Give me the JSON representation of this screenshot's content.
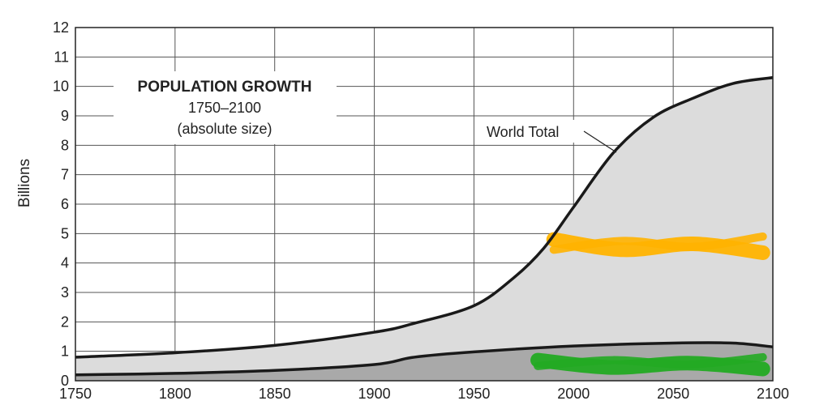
{
  "chart_data": {
    "type": "area",
    "title": "POPULATION GROWTH",
    "subtitle_line1": "1750–2100",
    "subtitle_line2": "(absolute size)",
    "ylabel": "Billions",
    "xlabel": "",
    "xlim": [
      1750,
      2100
    ],
    "ylim": [
      0,
      12
    ],
    "x_ticks": [
      1750,
      1800,
      1850,
      1900,
      1950,
      2000,
      2050,
      2100
    ],
    "y_ticks": [
      0,
      1,
      2,
      3,
      4,
      5,
      6,
      7,
      8,
      9,
      10,
      11,
      12
    ],
    "grid": true,
    "annotation": "World Total",
    "series": [
      {
        "role": "upper",
        "fill": "#dcdcdc",
        "points": [
          [
            1750,
            0.8
          ],
          [
            1800,
            0.95
          ],
          [
            1850,
            1.2
          ],
          [
            1900,
            1.65
          ],
          [
            1920,
            1.95
          ],
          [
            1950,
            2.55
          ],
          [
            1970,
            3.5
          ],
          [
            1985,
            4.5
          ],
          [
            2000,
            5.9
          ],
          [
            2020,
            7.75
          ],
          [
            2040,
            8.95
          ],
          [
            2060,
            9.6
          ],
          [
            2080,
            10.1
          ],
          [
            2100,
            10.3
          ]
        ]
      },
      {
        "role": "lower",
        "fill": "#a9a9a9",
        "points": [
          [
            1750,
            0.2
          ],
          [
            1800,
            0.25
          ],
          [
            1850,
            0.35
          ],
          [
            1900,
            0.55
          ],
          [
            1920,
            0.8
          ],
          [
            1950,
            0.98
          ],
          [
            2000,
            1.18
          ],
          [
            2050,
            1.28
          ],
          [
            2080,
            1.28
          ],
          [
            2100,
            1.15
          ]
        ]
      }
    ],
    "highlights": [
      {
        "name": "orange scribble",
        "color": "#ffb300",
        "x_range": [
          1990,
          2095
        ],
        "y_values": [
          4.8,
          4.45,
          4.65,
          4.35
        ]
      },
      {
        "name": "green scribble",
        "color": "#22aa22",
        "x_range": [
          1982,
          2095
        ],
        "y_values": [
          0.7,
          0.45,
          0.6,
          0.4
        ]
      }
    ]
  }
}
